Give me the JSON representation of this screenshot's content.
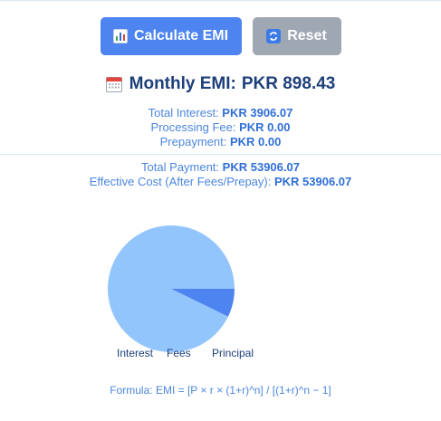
{
  "buttons": {
    "calculate": {
      "label": "Calculate EMI",
      "icon": "bar-chart-icon"
    },
    "reset": {
      "label": "Reset",
      "icon": "refresh-icon"
    }
  },
  "emi": {
    "icon": "calendar-icon",
    "label": "Monthly EMI:",
    "value": "PKR 898.43"
  },
  "summary": {
    "total_interest_label": "Total Interest:",
    "total_interest_value": "PKR 3906.07",
    "processing_fee_label": "Processing Fee:",
    "processing_fee_value": "PKR 0.00",
    "prepayment_label": "Prepayment:",
    "prepayment_value": "PKR 0.00",
    "total_payment_label": "Total Payment:",
    "total_payment_value": "PKR 53906.07",
    "effective_cost_label": "Effective Cost (After Fees/Prepay):",
    "effective_cost_value": "PKR 53906.07"
  },
  "chart_data": {
    "type": "pie",
    "categories": [
      "Interest",
      "Fees",
      "Principal"
    ],
    "values": [
      3906.07,
      0,
      50000
    ],
    "colors": [
      "#4d84f0",
      "#2c6ee0",
      "#93c5fd"
    ],
    "legend_position": "bottom"
  },
  "formula": "Formula: EMI = [P × r × (1+r)^n] / [(1+r)^n − 1]",
  "colors": {
    "primary_button": "#4d84f0",
    "reset_button": "#9fa7b3",
    "heading": "#1d3f7a",
    "info_text": "#4a86dd"
  }
}
